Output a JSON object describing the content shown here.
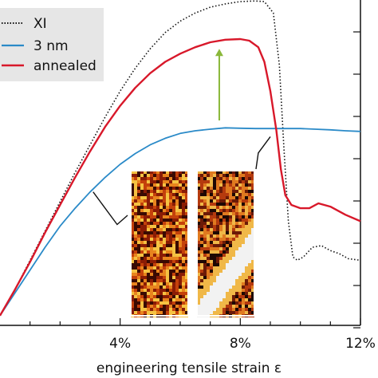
{
  "chart_data": {
    "type": "line",
    "xlabel": "engineering tensile strain ε",
    "ylabel": "",
    "xlim": [
      0,
      12
    ],
    "ylim": [
      0,
      10
    ],
    "x_ticks": [
      4,
      8,
      12
    ],
    "x_tick_labels": [
      "4%",
      "8%",
      "12%"
    ],
    "y_tick_count": 8,
    "grid": false,
    "legend_position": "top-left",
    "series": [
      {
        "name": "XI",
        "color": "#111111",
        "style": "dotted",
        "points": [
          [
            0,
            0.3
          ],
          [
            0.5,
            1.1
          ],
          [
            1,
            2.0
          ],
          [
            1.5,
            2.9
          ],
          [
            2,
            3.8
          ],
          [
            2.5,
            4.7
          ],
          [
            3,
            5.55
          ],
          [
            3.5,
            6.4
          ],
          [
            4,
            7.2
          ],
          [
            4.5,
            7.9
          ],
          [
            5,
            8.5
          ],
          [
            5.5,
            9.0
          ],
          [
            6,
            9.35
          ],
          [
            6.5,
            9.6
          ],
          [
            7,
            9.78
          ],
          [
            7.5,
            9.88
          ],
          [
            8,
            9.95
          ],
          [
            8.5,
            9.97
          ],
          [
            8.8,
            9.95
          ],
          [
            9.1,
            9.6
          ],
          [
            9.3,
            8.0
          ],
          [
            9.45,
            5.5
          ],
          [
            9.6,
            3.2
          ],
          [
            9.75,
            2.1
          ],
          [
            9.9,
            2.0
          ],
          [
            10.1,
            2.1
          ],
          [
            10.4,
            2.4
          ],
          [
            10.7,
            2.45
          ],
          [
            11.0,
            2.3
          ],
          [
            11.3,
            2.2
          ],
          [
            11.6,
            2.05
          ],
          [
            12,
            2.0
          ]
        ]
      },
      {
        "name": "3 nm",
        "color": "#2a8ac8",
        "style": "solid",
        "points": [
          [
            0,
            0.3
          ],
          [
            0.5,
            1.0
          ],
          [
            1,
            1.7
          ],
          [
            1.5,
            2.4
          ],
          [
            2,
            3.05
          ],
          [
            2.5,
            3.6
          ],
          [
            3,
            4.1
          ],
          [
            3.5,
            4.55
          ],
          [
            4,
            4.95
          ],
          [
            4.5,
            5.28
          ],
          [
            5,
            5.55
          ],
          [
            5.5,
            5.75
          ],
          [
            6,
            5.9
          ],
          [
            6.5,
            5.98
          ],
          [
            7,
            6.03
          ],
          [
            7.5,
            6.07
          ],
          [
            8,
            6.06
          ],
          [
            8.5,
            6.05
          ],
          [
            9,
            6.05
          ],
          [
            9.5,
            6.05
          ],
          [
            10,
            6.05
          ],
          [
            10.5,
            6.03
          ],
          [
            11,
            6.01
          ],
          [
            11.5,
            5.98
          ],
          [
            12,
            5.96
          ]
        ]
      },
      {
        "name": "annealed",
        "color": "#d8182a",
        "style": "solid",
        "points": [
          [
            0,
            0.3
          ],
          [
            0.5,
            1.1
          ],
          [
            1,
            1.95
          ],
          [
            1.5,
            2.85
          ],
          [
            2,
            3.7
          ],
          [
            2.5,
            4.55
          ],
          [
            3,
            5.35
          ],
          [
            3.5,
            6.1
          ],
          [
            4,
            6.75
          ],
          [
            4.5,
            7.3
          ],
          [
            5,
            7.75
          ],
          [
            5.5,
            8.1
          ],
          [
            6,
            8.35
          ],
          [
            6.5,
            8.55
          ],
          [
            7,
            8.7
          ],
          [
            7.5,
            8.78
          ],
          [
            8,
            8.8
          ],
          [
            8.3,
            8.75
          ],
          [
            8.6,
            8.55
          ],
          [
            8.8,
            8.1
          ],
          [
            9.0,
            7.2
          ],
          [
            9.2,
            6.0
          ],
          [
            9.35,
            4.8
          ],
          [
            9.5,
            4.0
          ],
          [
            9.7,
            3.7
          ],
          [
            10,
            3.6
          ],
          [
            10.3,
            3.6
          ],
          [
            10.6,
            3.75
          ],
          [
            11,
            3.65
          ],
          [
            11.5,
            3.4
          ],
          [
            12,
            3.2
          ]
        ]
      }
    ],
    "annotations": {
      "arrow": {
        "color": "#8ab83a",
        "x": 7.3,
        "y_from": 6.3,
        "y_to": 8.5
      },
      "leader_lines": [
        {
          "color": "#111111",
          "points": [
            [
              3.1,
              4.1
            ],
            [
              3.9,
              3.1
            ]
          ]
        },
        {
          "color": "#111111",
          "points": [
            [
              9.0,
              5.8
            ],
            [
              8.6,
              5.3
            ]
          ]
        }
      ]
    },
    "insets": [
      {
        "name": "inset-left",
        "palette": [
          "#3a0a02",
          "#8a1c05",
          "#c4410b",
          "#e8841e",
          "#f5c242"
        ]
      },
      {
        "name": "inset-right",
        "palette": [
          "#1e0804",
          "#6b1a07",
          "#b53a0e",
          "#e07a20",
          "#f0b848",
          "#f2f2f2"
        ]
      }
    ]
  }
}
